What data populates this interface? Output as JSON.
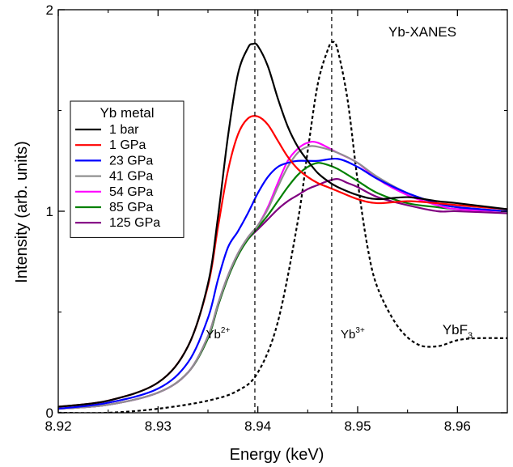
{
  "chart_data": {
    "type": "line",
    "title": "Yb-XANES",
    "xlabel": "Energy (keV)",
    "ylabel": "Intensity (arb. units)",
    "xlim": [
      8.92,
      8.965
    ],
    "ylim": [
      0,
      2
    ],
    "xticks": [
      "8.92",
      "8.93",
      "8.94",
      "8.95",
      "8.96"
    ],
    "yticks": [
      "0",
      "1",
      "2"
    ],
    "grid": false,
    "legend": {
      "title": "Yb metal",
      "position": "left"
    },
    "series": [
      {
        "name": "1 bar",
        "color": "#000000",
        "style": "solid",
        "x": [
          8.92,
          8.925,
          8.93,
          8.933,
          8.935,
          8.936,
          8.937,
          8.938,
          8.939,
          8.9395,
          8.94,
          8.941,
          8.942,
          8.943,
          8.944,
          8.945,
          8.946,
          8.947,
          8.948,
          8.95,
          8.952,
          8.955,
          8.958,
          8.96,
          8.965
        ],
        "y": [
          0.03,
          0.06,
          0.15,
          0.33,
          0.64,
          0.97,
          1.37,
          1.68,
          1.81,
          1.83,
          1.82,
          1.72,
          1.56,
          1.42,
          1.32,
          1.25,
          1.19,
          1.15,
          1.12,
          1.08,
          1.06,
          1.07,
          1.05,
          1.04,
          1.01
        ]
      },
      {
        "name": "1 GPa",
        "color": "#ff0000",
        "style": "solid",
        "x": [
          8.92,
          8.925,
          8.93,
          8.933,
          8.935,
          8.936,
          8.937,
          8.938,
          8.939,
          8.94,
          8.941,
          8.942,
          8.943,
          8.944,
          8.945,
          8.946,
          8.947,
          8.948,
          8.95,
          8.952,
          8.955,
          8.958,
          8.96,
          8.965
        ],
        "y": [
          0.03,
          0.06,
          0.15,
          0.33,
          0.63,
          0.92,
          1.2,
          1.38,
          1.46,
          1.47,
          1.43,
          1.35,
          1.27,
          1.21,
          1.17,
          1.14,
          1.12,
          1.1,
          1.06,
          1.04,
          1.05,
          1.04,
          1.03,
          1.01
        ]
      },
      {
        "name": "23 GPa",
        "color": "#0000ff",
        "style": "solid",
        "x": [
          8.92,
          8.925,
          8.93,
          8.933,
          8.935,
          8.936,
          8.937,
          8.938,
          8.939,
          8.94,
          8.941,
          8.942,
          8.943,
          8.944,
          8.946,
          8.948,
          8.95,
          8.952,
          8.955,
          8.958,
          8.96,
          8.965
        ],
        "y": [
          0.02,
          0.05,
          0.12,
          0.25,
          0.47,
          0.66,
          0.82,
          0.9,
          0.99,
          1.09,
          1.17,
          1.22,
          1.24,
          1.25,
          1.25,
          1.26,
          1.22,
          1.16,
          1.09,
          1.04,
          1.02,
          1.0
        ]
      },
      {
        "name": "41 GPa",
        "color": "#909090",
        "style": "solid",
        "x": [
          8.92,
          8.925,
          8.93,
          8.933,
          8.935,
          8.936,
          8.937,
          8.938,
          8.939,
          8.94,
          8.941,
          8.942,
          8.943,
          8.944,
          8.945,
          8.946,
          8.948,
          8.95,
          8.952,
          8.955,
          8.958,
          8.96,
          8.965
        ],
        "y": [
          0.02,
          0.04,
          0.1,
          0.2,
          0.38,
          0.54,
          0.68,
          0.79,
          0.87,
          0.93,
          1.01,
          1.12,
          1.22,
          1.29,
          1.32,
          1.32,
          1.29,
          1.24,
          1.17,
          1.09,
          1.04,
          1.02,
          1.0
        ]
      },
      {
        "name": "54 GPa",
        "color": "#ff00ff",
        "style": "solid",
        "x": [
          8.92,
          8.925,
          8.93,
          8.933,
          8.935,
          8.936,
          8.937,
          8.938,
          8.939,
          8.94,
          8.941,
          8.942,
          8.943,
          8.944,
          8.945,
          8.946,
          8.948,
          8.95,
          8.952,
          8.955,
          8.958,
          8.96,
          8.965
        ],
        "y": [
          0.02,
          0.04,
          0.1,
          0.2,
          0.38,
          0.54,
          0.68,
          0.79,
          0.87,
          0.93,
          1.02,
          1.14,
          1.25,
          1.31,
          1.34,
          1.34,
          1.29,
          1.24,
          1.16,
          1.08,
          1.03,
          1.01,
          1.0
        ]
      },
      {
        "name": "85 GPa",
        "color": "#008000",
        "style": "solid",
        "x": [
          8.92,
          8.925,
          8.93,
          8.933,
          8.935,
          8.936,
          8.937,
          8.938,
          8.939,
          8.94,
          8.941,
          8.942,
          8.943,
          8.944,
          8.945,
          8.946,
          8.947,
          8.948,
          8.95,
          8.952,
          8.955,
          8.958,
          8.96,
          8.965
        ],
        "y": [
          0.02,
          0.04,
          0.1,
          0.2,
          0.37,
          0.53,
          0.67,
          0.78,
          0.86,
          0.92,
          0.98,
          1.05,
          1.12,
          1.18,
          1.22,
          1.24,
          1.23,
          1.21,
          1.15,
          1.09,
          1.04,
          1.02,
          1.01,
          1.0
        ]
      },
      {
        "name": "125 GPa",
        "color": "#800080",
        "style": "solid",
        "x": [
          8.92,
          8.925,
          8.93,
          8.933,
          8.935,
          8.936,
          8.937,
          8.938,
          8.939,
          8.94,
          8.941,
          8.942,
          8.943,
          8.944,
          8.945,
          8.946,
          8.947,
          8.948,
          8.949,
          8.95,
          8.952,
          8.955,
          8.958,
          8.96,
          8.965
        ],
        "y": [
          0.02,
          0.04,
          0.1,
          0.2,
          0.37,
          0.53,
          0.67,
          0.78,
          0.86,
          0.91,
          0.96,
          1.01,
          1.05,
          1.08,
          1.11,
          1.13,
          1.15,
          1.16,
          1.14,
          1.12,
          1.07,
          1.03,
          1.0,
          1.0,
          0.99
        ]
      },
      {
        "name": "YbF3",
        "color": "#000000",
        "style": "dashed",
        "x": [
          8.92,
          8.925,
          8.93,
          8.935,
          8.938,
          8.94,
          8.942,
          8.944,
          8.945,
          8.946,
          8.947,
          8.9475,
          8.948,
          8.949,
          8.95,
          8.951,
          8.952,
          8.954,
          8.956,
          8.958,
          8.96,
          8.962,
          8.965
        ],
        "y": [
          0.0,
          0.0,
          0.02,
          0.06,
          0.11,
          0.2,
          0.45,
          0.95,
          1.3,
          1.63,
          1.8,
          1.84,
          1.8,
          1.55,
          1.15,
          0.82,
          0.62,
          0.43,
          0.34,
          0.33,
          0.36,
          0.37,
          0.37
        ]
      }
    ],
    "vlines": [
      8.9397,
      8.9474
    ],
    "annotations": [
      {
        "text": "Yb",
        "sup": "2+",
        "x": 8.9348,
        "y": 0.37
      },
      {
        "text": "Yb",
        "sup": "3+",
        "x": 8.9483,
        "y": 0.37
      },
      {
        "text": "YbF",
        "sub": "3",
        "x": 8.9585,
        "y": 0.39
      }
    ]
  }
}
